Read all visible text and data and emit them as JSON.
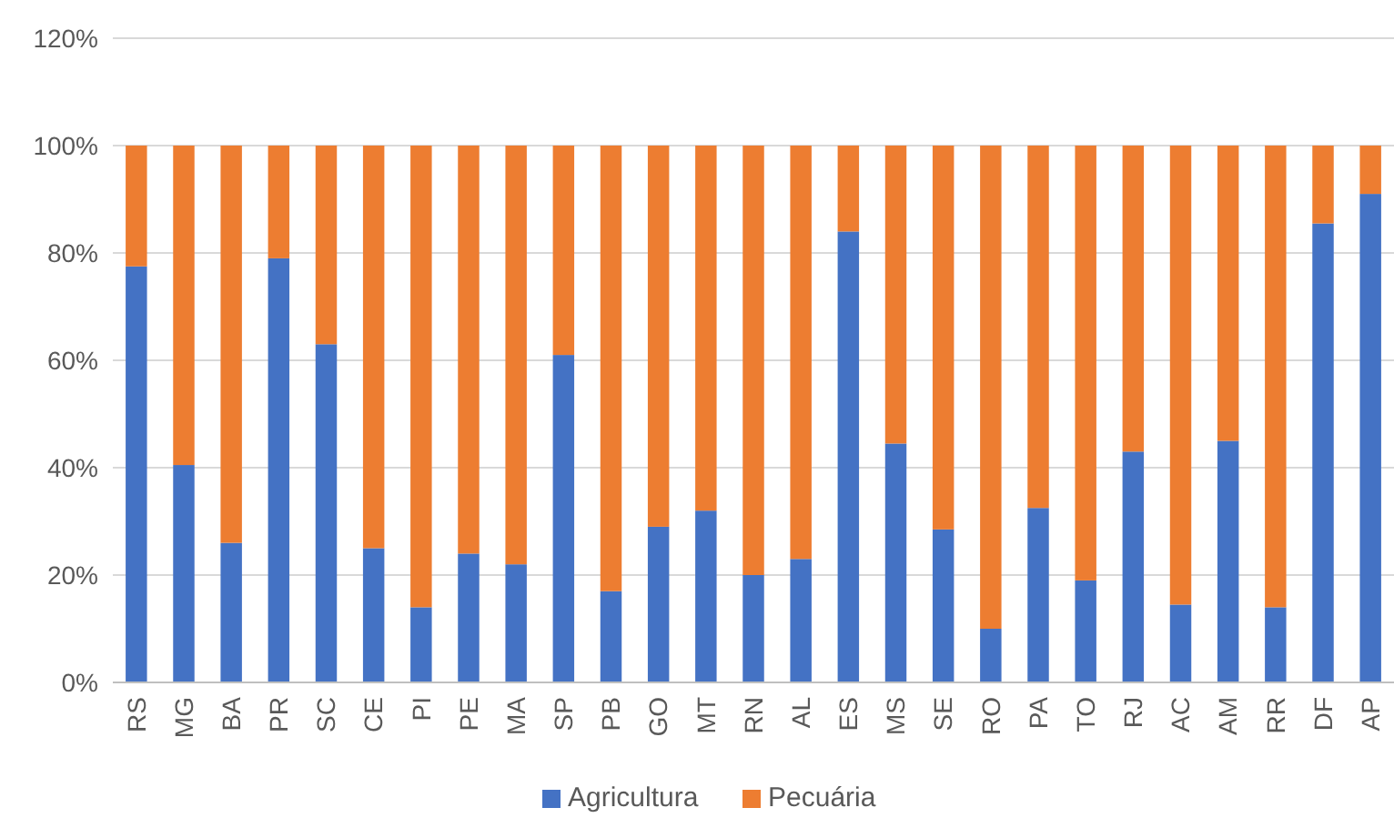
{
  "chart_data": {
    "type": "bar",
    "stacked": true,
    "categories": [
      "RS",
      "MG",
      "BA",
      "PR",
      "SC",
      "CE",
      "PI",
      "PE",
      "MA",
      "SP",
      "PB",
      "GO",
      "MT",
      "RN",
      "AL",
      "ES",
      "MS",
      "SE",
      "RO",
      "PA",
      "TO",
      "RJ",
      "AC",
      "AM",
      "RR",
      "DF",
      "AP"
    ],
    "series": [
      {
        "name": "Agricultura",
        "color": "#4472c4",
        "values": [
          77.5,
          40.5,
          26,
          79,
          63,
          25,
          14,
          24,
          22,
          61,
          17,
          29,
          32,
          20,
          23,
          84,
          44.5,
          28.5,
          10,
          32.5,
          19,
          43,
          14.5,
          45,
          14,
          85.5,
          91
        ]
      },
      {
        "name": "Pecuária",
        "color": "#ed7d31",
        "values": [
          22.5,
          59.5,
          74,
          21,
          37,
          75,
          86,
          76,
          78,
          39,
          83,
          71,
          68,
          80,
          77,
          16,
          55.5,
          71.5,
          90,
          67.5,
          81,
          57,
          85.5,
          55,
          86,
          14.5,
          9
        ]
      }
    ],
    "ylim": [
      0,
      120
    ],
    "yticks": [
      {
        "value": 0,
        "label": "0%"
      },
      {
        "value": 20,
        "label": "20%"
      },
      {
        "value": 40,
        "label": "40%"
      },
      {
        "value": 60,
        "label": "60%"
      },
      {
        "value": 80,
        "label": "80%"
      },
      {
        "value": 100,
        "label": "100%"
      },
      {
        "value": 120,
        "label": "120%"
      }
    ],
    "grid": "y",
    "legend": "bottom"
  }
}
